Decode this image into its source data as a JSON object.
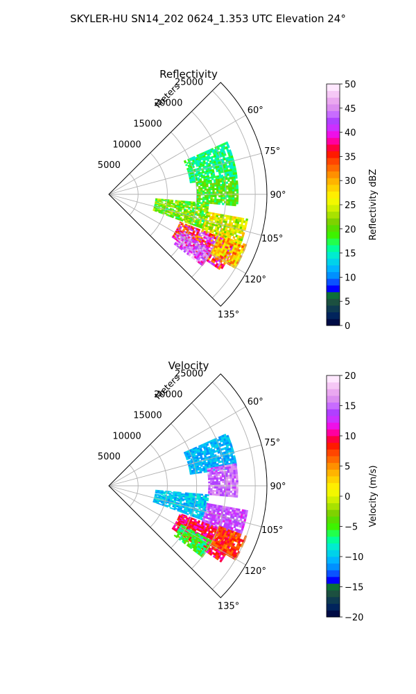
{
  "figure": {
    "suptitle": "SKYLER-HU  SN14_202  0624_1.353 UTC Elevation 24°"
  },
  "chart_data": [
    {
      "type": "heatmap",
      "projection": "polar-sector",
      "title": "Reflectivity",
      "radial_label": "Meters",
      "radial_ticks": [
        "5000",
        "10000",
        "15000",
        "20000",
        "25000"
      ],
      "radial_tick_values": [
        5000,
        10000,
        15000,
        20000,
        25000
      ],
      "rlim": [
        0,
        27000
      ],
      "angle_ticks": [
        "60°",
        "75°",
        "90°",
        "105°",
        "120°",
        "135°"
      ],
      "angle_tick_values": [
        60,
        75,
        90,
        105,
        120,
        135
      ],
      "theta_range": [
        45,
        135
      ],
      "grid": true,
      "colorbar": {
        "label": "Reflectivity dBZ",
        "ticks": [
          "0",
          "5",
          "10",
          "15",
          "20",
          "25",
          "30",
          "35",
          "40",
          "45",
          "50"
        ],
        "range": [
          0,
          50
        ],
        "colors": [
          "#000c45",
          "#01245c",
          "#0e3a50",
          "#1c5040",
          "#0d6f38",
          "#0000ff",
          "#0a52ff",
          "#0090ff",
          "#00b4ff",
          "#00d2ea",
          "#00ecd0",
          "#00ff9a",
          "#22ff4c",
          "#3ef200",
          "#58de00",
          "#7ed200",
          "#a8e200",
          "#d0f000",
          "#f2f800",
          "#ffee00",
          "#ffd200",
          "#ffb400",
          "#ff9000",
          "#ff6a00",
          "#ff4600",
          "#ff1a00",
          "#ff0040",
          "#ff00a0",
          "#ee10e8",
          "#cc30ff",
          "#b040ff",
          "#c86cff",
          "#dc8ef0",
          "#eaa8f0",
          "#f6c8f6",
          "#ffe8ff"
        ]
      },
      "echo_regions": [
        {
          "r_range": [
            14000,
            22000
          ],
          "theta_range": [
            66,
            82
          ],
          "value_range": [
            14,
            19
          ]
        },
        {
          "r_range": [
            15000,
            22000
          ],
          "theta_range": [
            82,
            95
          ],
          "value_range": [
            16,
            23
          ]
        },
        {
          "r_range": [
            8000,
            17000
          ],
          "theta_range": [
            95,
            110
          ],
          "value_range": [
            16,
            25
          ]
        },
        {
          "r_range": [
            17000,
            24000
          ],
          "theta_range": [
            100,
            112
          ],
          "value_range": [
            20,
            30
          ]
        },
        {
          "r_range": [
            13000,
            23000
          ],
          "theta_range": [
            111,
            124
          ],
          "value_range": [
            30,
            46
          ]
        },
        {
          "r_range": [
            14000,
            20000
          ],
          "theta_range": [
            118,
            127
          ],
          "value_range": [
            38,
            48
          ]
        },
        {
          "r_range": [
            20000,
            25000
          ],
          "theta_range": [
            110,
            120
          ],
          "value_range": [
            24,
            34
          ]
        }
      ]
    },
    {
      "type": "heatmap",
      "projection": "polar-sector",
      "title": "Velocity",
      "radial_label": "Meters",
      "radial_ticks": [
        "5000",
        "10000",
        "15000",
        "20000",
        "25000"
      ],
      "radial_tick_values": [
        5000,
        10000,
        15000,
        20000,
        25000
      ],
      "rlim": [
        0,
        27000
      ],
      "angle_ticks": [
        "60°",
        "75°",
        "90°",
        "105°",
        "120°",
        "135°"
      ],
      "angle_tick_values": [
        60,
        75,
        90,
        105,
        120,
        135
      ],
      "theta_range": [
        45,
        135
      ],
      "grid": true,
      "colorbar": {
        "label": "Velocity (m/s)",
        "ticks": [
          "−20",
          "−15",
          "−10",
          "−5",
          "0",
          "5",
          "10",
          "15",
          "20"
        ],
        "range": [
          -20,
          20
        ],
        "colors": [
          "#000c45",
          "#01245c",
          "#0e3a50",
          "#1c5040",
          "#0d6f38",
          "#0000ff",
          "#0a52ff",
          "#0090ff",
          "#00b4ff",
          "#00d2ea",
          "#00ecd0",
          "#00ff9a",
          "#22ff4c",
          "#3ef200",
          "#58de00",
          "#7ed200",
          "#a8e200",
          "#d0f000",
          "#f2f800",
          "#ffee00",
          "#ffd200",
          "#ffb400",
          "#ff9000",
          "#ff6a00",
          "#ff4600",
          "#ff1a00",
          "#ff0040",
          "#ff00a0",
          "#ee10e8",
          "#cc30ff",
          "#b040ff",
          "#c86cff",
          "#dc8ef0",
          "#eaa8f0",
          "#f6c8f6",
          "#ffe8ff"
        ]
      },
      "echo_regions": [
        {
          "r_range": [
            14000,
            22000
          ],
          "theta_range": [
            66,
            82
          ],
          "value_range": [
            -12,
            -9
          ]
        },
        {
          "r_range": [
            17000,
            22000
          ],
          "theta_range": [
            80,
            95
          ],
          "value_range": [
            13,
            17
          ]
        },
        {
          "r_range": [
            8000,
            17000
          ],
          "theta_range": [
            95,
            110
          ],
          "value_range": [
            -12,
            -8
          ]
        },
        {
          "r_range": [
            17000,
            24000
          ],
          "theta_range": [
            100,
            112
          ],
          "value_range": [
            12,
            16
          ]
        },
        {
          "r_range": [
            13000,
            23000
          ],
          "theta_range": [
            111,
            124
          ],
          "value_range": [
            7,
            12
          ]
        },
        {
          "r_range": [
            14000,
            20000
          ],
          "theta_range": [
            118,
            127
          ],
          "value_range": [
            -8,
            -3
          ]
        },
        {
          "r_range": [
            20000,
            25000
          ],
          "theta_range": [
            110,
            120
          ],
          "value_range": [
            5,
            10
          ]
        }
      ]
    }
  ]
}
